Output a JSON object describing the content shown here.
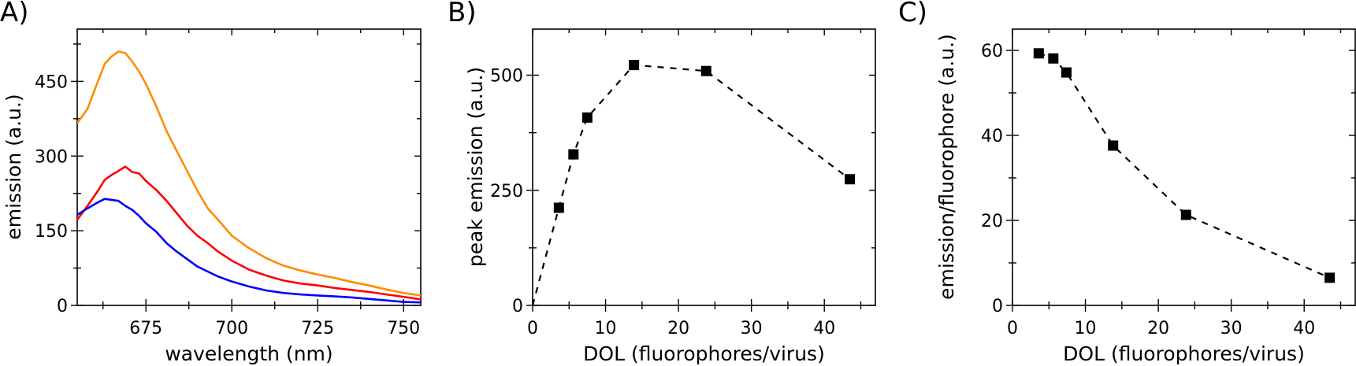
{
  "panels": {
    "a": {
      "label": "A)"
    },
    "b": {
      "label": "B)"
    },
    "c": {
      "label": "C)"
    }
  },
  "chart_data": [
    {
      "id": "A",
      "type": "line",
      "title": "",
      "xlabel": "wavelength (nm)",
      "ylabel": "emission (a.u.)",
      "xlim": [
        655,
        755
      ],
      "ylim": [
        0,
        555
      ],
      "xticks": [
        675,
        700,
        725,
        750
      ],
      "xminor": [
        662.5,
        687.5,
        712.5,
        737.5
      ],
      "yticks": [
        0,
        150,
        300,
        450
      ],
      "yminor": [
        75,
        225,
        375,
        525
      ],
      "grid": false,
      "legend": null,
      "x": [
        655,
        658,
        661,
        663,
        665,
        667,
        669,
        671,
        673,
        675,
        678,
        681,
        684,
        687,
        690,
        693,
        696,
        700,
        705,
        710,
        715,
        720,
        725,
        730,
        735,
        740,
        745,
        750,
        755
      ],
      "series": [
        {
          "name": "orange",
          "color": "#FF8C00",
          "values": [
            366,
            395,
            450,
            485,
            500,
            510,
            507,
            490,
            470,
            445,
            400,
            350,
            310,
            270,
            230,
            195,
            172,
            140,
            115,
            95,
            80,
            70,
            62,
            55,
            47,
            40,
            32,
            25,
            20
          ]
        },
        {
          "name": "red",
          "color": "#FF0000",
          "values": [
            172,
            200,
            230,
            252,
            262,
            270,
            279,
            268,
            265,
            250,
            232,
            210,
            185,
            160,
            140,
            125,
            108,
            90,
            72,
            60,
            50,
            44,
            40,
            35,
            31,
            27,
            22,
            17,
            12
          ]
        },
        {
          "name": "blue",
          "color": "#0000FF",
          "values": [
            182,
            195,
            207,
            214,
            212,
            210,
            200,
            192,
            180,
            165,
            148,
            125,
            108,
            93,
            78,
            68,
            58,
            48,
            38,
            30,
            25,
            22,
            20,
            18,
            16,
            13,
            10,
            7,
            6
          ]
        }
      ]
    },
    {
      "id": "B",
      "type": "scatter",
      "title": "",
      "xlabel": "DOL (fluorophores/virus)",
      "ylabel": "peak emission (a.u.)",
      "xlim": [
        0,
        47
      ],
      "ylim": [
        0,
        600
      ],
      "xticks": [
        0,
        10,
        20,
        30,
        40
      ],
      "xminor": [
        5,
        15,
        25,
        35,
        45
      ],
      "yticks": [
        0,
        250,
        500
      ],
      "yminor": [
        125,
        375
      ],
      "grid": false,
      "marker": "square",
      "line": "dashed",
      "line_starts_at_origin": true,
      "x": [
        3.6,
        5.6,
        7.5,
        13.9,
        23.8,
        43.5
      ],
      "series": [
        {
          "name": "peak emission",
          "color": "#000000",
          "values": [
            212,
            328,
            408,
            522,
            509,
            274
          ]
        }
      ]
    },
    {
      "id": "C",
      "type": "scatter",
      "title": "",
      "xlabel": "DOL (fluorophores/virus)",
      "ylabel": "emission/fluorophore (a.u.)",
      "xlim": [
        0,
        47
      ],
      "ylim": [
        0,
        65
      ],
      "xticks": [
        0,
        10,
        20,
        30,
        40
      ],
      "xminor": [
        5,
        15,
        25,
        35,
        45
      ],
      "yticks": [
        0,
        20,
        40,
        60
      ],
      "yminor": [
        10,
        30,
        50
      ],
      "grid": false,
      "marker": "square",
      "line": "dashed",
      "x": [
        3.6,
        5.6,
        7.4,
        13.8,
        23.8,
        43.5
      ],
      "series": [
        {
          "name": "emission/fluorophore",
          "color": "#000000",
          "values": [
            59.3,
            58.1,
            54.8,
            37.6,
            21.3,
            6.5
          ]
        }
      ]
    }
  ]
}
